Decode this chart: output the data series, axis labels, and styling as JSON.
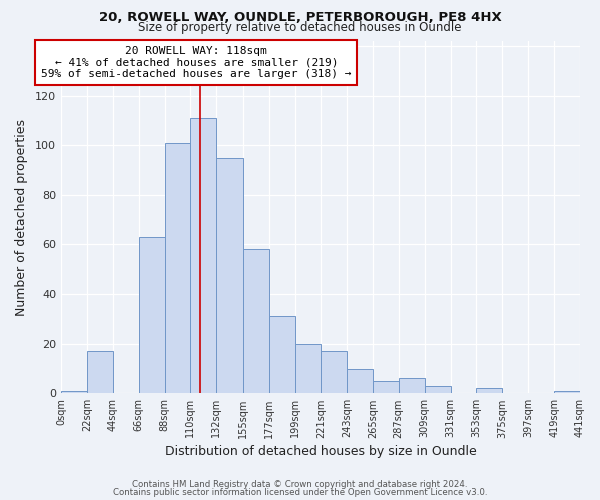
{
  "title1": "20, ROWELL WAY, OUNDLE, PETERBOROUGH, PE8 4HX",
  "title2": "Size of property relative to detached houses in Oundle",
  "xlabel": "Distribution of detached houses by size in Oundle",
  "ylabel": "Number of detached properties",
  "bin_edges": [
    0,
    22,
    44,
    66,
    88,
    110,
    132,
    155,
    177,
    199,
    221,
    243,
    265,
    287,
    309,
    331,
    353,
    375,
    397,
    419,
    441
  ],
  "bin_heights": [
    1,
    17,
    0,
    63,
    101,
    111,
    95,
    58,
    31,
    20,
    17,
    10,
    5,
    6,
    3,
    0,
    2,
    0,
    0,
    1
  ],
  "bar_facecolor": "#ccd9f0",
  "bar_edgecolor": "#7096c8",
  "vline_x": 118,
  "vline_color": "#cc0000",
  "annotation_box_color": "#cc0000",
  "annotation_text_line1": "20 ROWELL WAY: 118sqm",
  "annotation_text_line2": "← 41% of detached houses are smaller (219)",
  "annotation_text_line3": "59% of semi-detached houses are larger (318) →",
  "ylim": [
    0,
    142
  ],
  "xlim": [
    0,
    441
  ],
  "tick_labels": [
    "0sqm",
    "22sqm",
    "44sqm",
    "66sqm",
    "88sqm",
    "110sqm",
    "132sqm",
    "155sqm",
    "177sqm",
    "199sqm",
    "221sqm",
    "243sqm",
    "265sqm",
    "287sqm",
    "309sqm",
    "331sqm",
    "353sqm",
    "375sqm",
    "397sqm",
    "419sqm",
    "441sqm"
  ],
  "footer1": "Contains HM Land Registry data © Crown copyright and database right 2024.",
  "footer2": "Contains public sector information licensed under the Open Government Licence v3.0.",
  "background_color": "#eef2f8"
}
